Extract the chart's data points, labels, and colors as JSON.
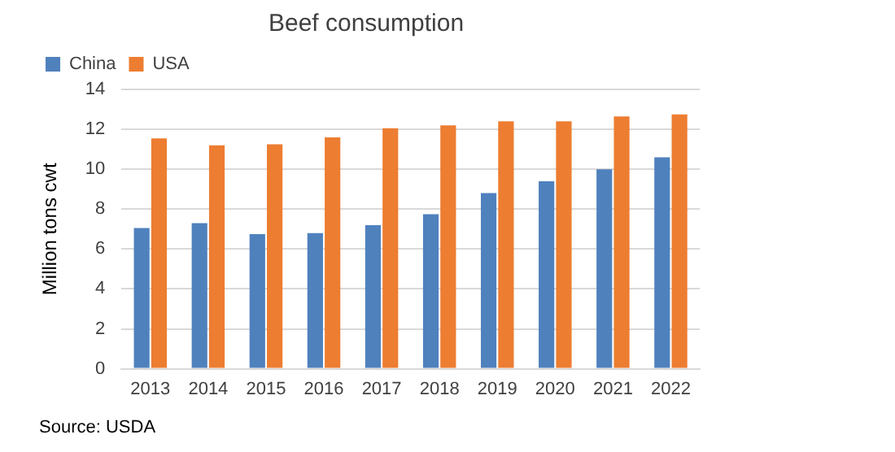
{
  "chart_data": {
    "type": "bar",
    "title": "Beef consumption",
    "ylabel": "Million tons cwt",
    "categories": [
      "2013",
      "2014",
      "2015",
      "2016",
      "2017",
      "2018",
      "2019",
      "2020",
      "2021",
      "2022"
    ],
    "series": [
      {
        "name": "China",
        "color": "#4f81bd",
        "values": [
          7.05,
          7.3,
          6.75,
          6.8,
          7.2,
          7.75,
          8.8,
          9.4,
          10,
          10.6
        ]
      },
      {
        "name": "USA",
        "color": "#ed7d31",
        "values": [
          11.55,
          11.2,
          11.25,
          11.6,
          12.05,
          12.2,
          12.4,
          12.4,
          12.65,
          12.75
        ]
      }
    ],
    "ylim": [
      0,
      14
    ],
    "yticks": [
      0,
      2,
      4,
      6,
      8,
      10,
      12,
      14
    ],
    "grid": "y",
    "legend": "top left",
    "annotations": [
      "Source: USDA"
    ]
  }
}
